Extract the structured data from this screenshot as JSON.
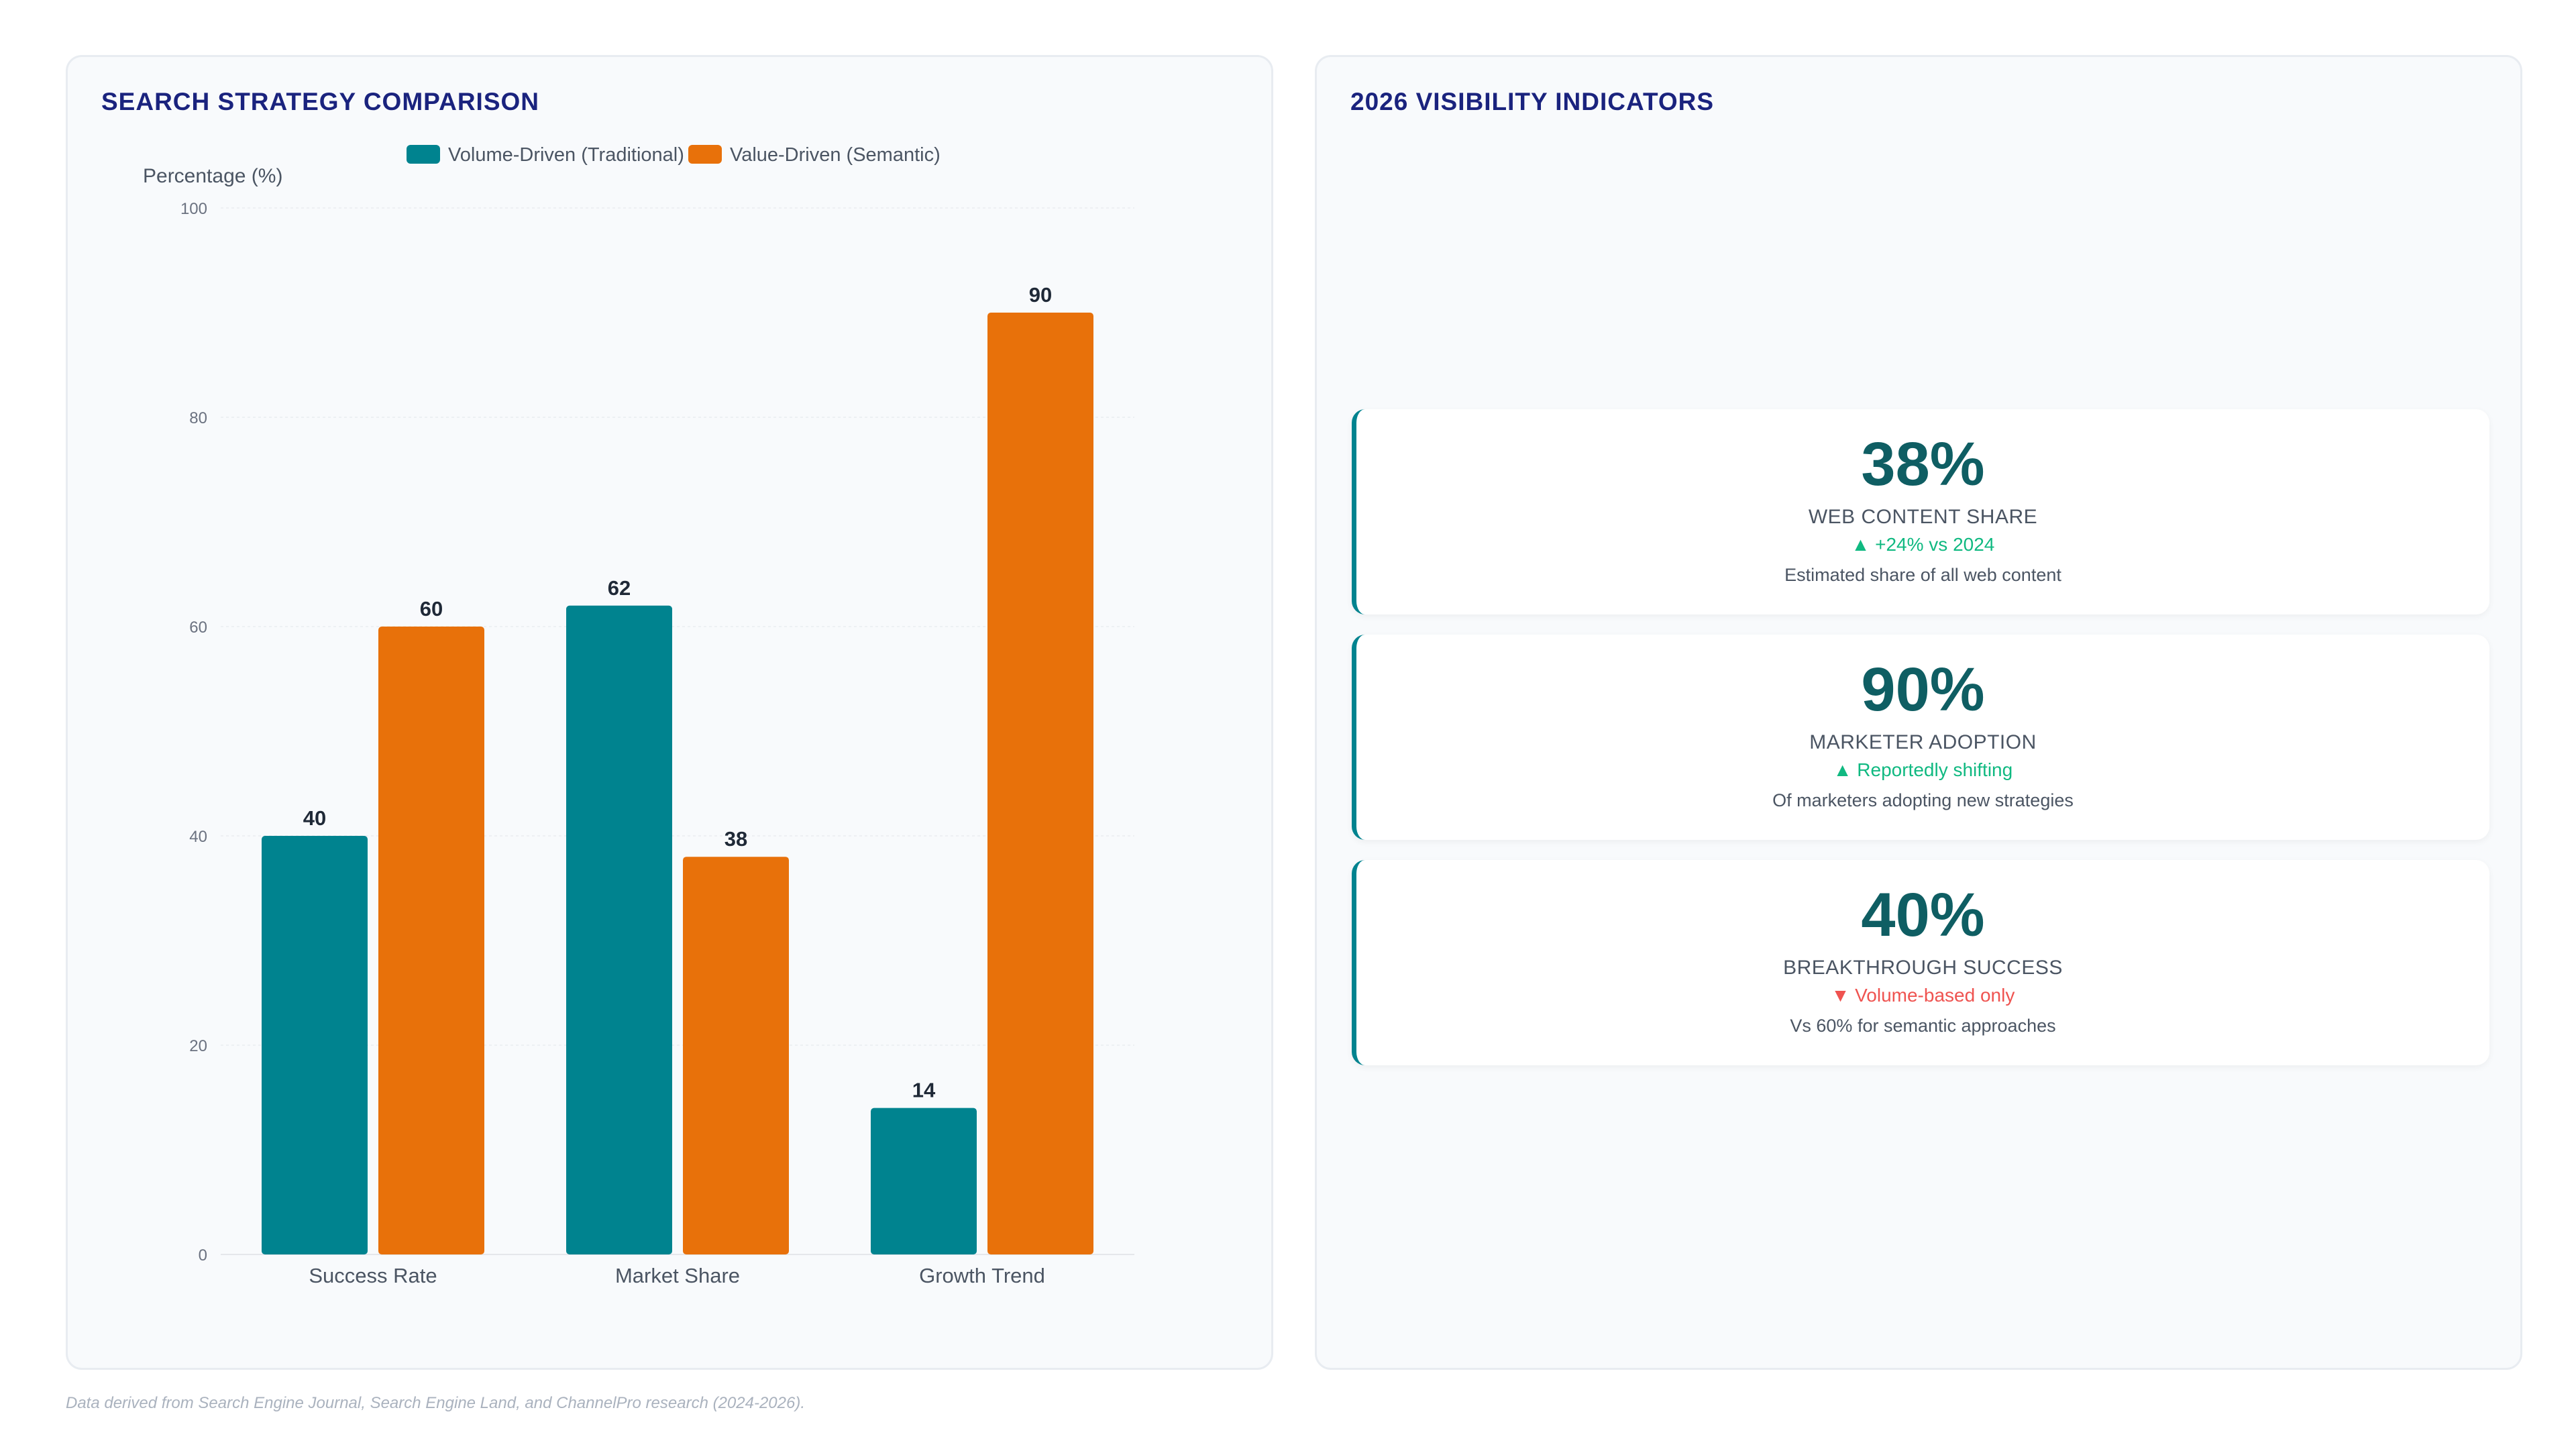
{
  "left_panel": {
    "title": "SEARCH STRATEGY COMPARISON"
  },
  "right_panel": {
    "title": "2026 VISIBILITY INDICATORS"
  },
  "chart_data": {
    "type": "bar",
    "categories": [
      "Success Rate",
      "Market Share",
      "Growth Trend"
    ],
    "series": [
      {
        "name": "Volume-Driven (Traditional)",
        "values": [
          40,
          62,
          14
        ],
        "color": "#00838f"
      },
      {
        "name": "Value-Driven (Semantic)",
        "values": [
          60,
          38,
          90
        ],
        "color": "#e8710a"
      }
    ],
    "title": "",
    "xlabel": "",
    "ylabel": "Percentage (%)",
    "ylim": [
      0,
      100
    ],
    "yticks": [
      0,
      20,
      40,
      60,
      80,
      100
    ],
    "grid": true,
    "legend": "top",
    "data_labels": true
  },
  "kpis": [
    {
      "value": "38%",
      "label": "WEB CONTENT SHARE",
      "trend": "▲ +24% vs 2024",
      "direction": "up",
      "description": "Estimated share of all web content"
    },
    {
      "value": "90%",
      "label": "MARKETER ADOPTION",
      "trend": "▲ Reportedly shifting",
      "direction": "up",
      "description": "Of marketers adopting new strategies"
    },
    {
      "value": "40%",
      "label": "BREAKTHROUGH SUCCESS",
      "trend": "▼ Volume-based only",
      "direction": "down",
      "description": "Vs 60% for semantic approaches"
    }
  ],
  "footnote": "Data derived from Search Engine Journal, Search Engine Land, and ChannelPro research (2024-2026)."
}
